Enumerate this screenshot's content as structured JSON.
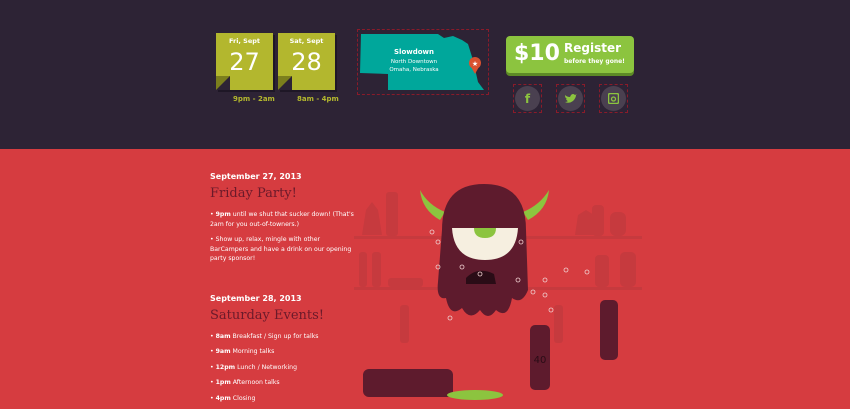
{
  "header": {
    "dates": [
      {
        "day": "Fri, Sept",
        "num": "27",
        "time": "9pm - 2am"
      },
      {
        "day": "Sat, Sept",
        "num": "28",
        "time": "8am - 4pm"
      }
    ],
    "venue": {
      "name": "Slowdown",
      "line1": "North Downtown",
      "line2": "Omaha, Nebraska"
    },
    "register": {
      "price": "$10",
      "label": "Register",
      "sub": "before they gone!"
    },
    "social": [
      {
        "icon": "facebook-icon",
        "glyph": "f"
      },
      {
        "icon": "twitter-icon",
        "glyph": "t"
      },
      {
        "icon": "instagram-icon",
        "glyph": "◙"
      }
    ]
  },
  "schedule": [
    {
      "date": "September 27, 2013",
      "title": "Friday Party!",
      "items": [
        {
          "time": "9pm",
          "text": " until we shut that sucker down! (That's 2am for you out-of-towners.)"
        },
        {
          "time": "",
          "text": "Show up, relax, mingle with other BarCampers and have a drink on our opening party sponsor!"
        }
      ]
    },
    {
      "date": "September 28, 2013",
      "title": "Saturday Events!",
      "items": [
        {
          "time": "8am",
          "text": " Breakfast / Sign up for talks"
        },
        {
          "time": "9am",
          "text": " Morning talks"
        },
        {
          "time": "12pm",
          "text": " Lunch / Networking"
        },
        {
          "time": "1pm",
          "text": " Afternoon talks"
        },
        {
          "time": "4pm",
          "text": " Closing"
        }
      ]
    }
  ],
  "illustration": {
    "bottle_label": "40"
  },
  "colors": {
    "top": "#2d2335",
    "main": "#d63c40",
    "green": "#8cc43f",
    "olive": "#b3b72e",
    "teal": "#00a79b"
  }
}
